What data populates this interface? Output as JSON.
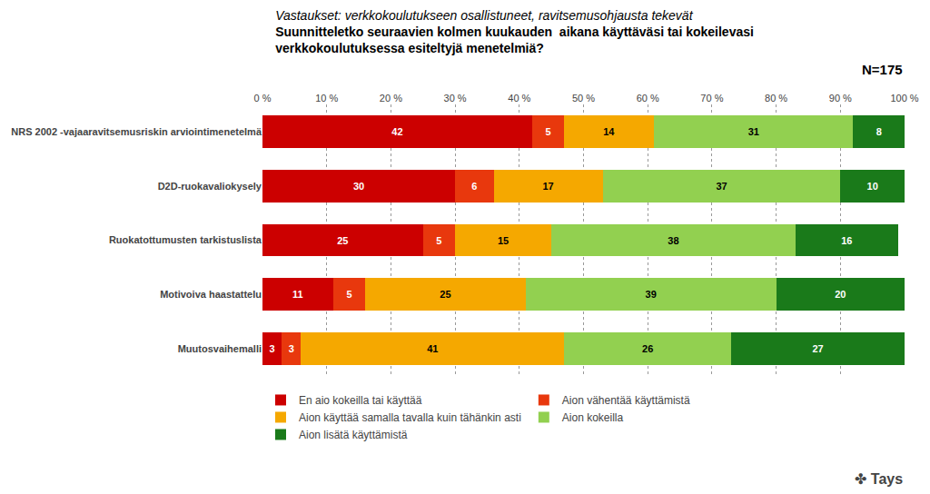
{
  "chart_data": {
    "type": "bar",
    "orientation": "horizontal",
    "stacked": true,
    "subtitle": "Vastaukset: verkkokoulutukseen osallistuneet, ravitsemusohjausta tekevät",
    "title": "Suunnitteletko seuraavien kolmen kuukauden  aikana käyttäväsi tai kokeilevasi\nverkkokoulutuksessa esiteltyjä menetelmiä?",
    "annotations": [
      "N=175",
      "✤ Tays"
    ],
    "categories": [
      "NRS 2002 -vajaaravitsemusriskin arviointimenetelmä",
      "D2D-ruokavaliokysely",
      "Ruokatottumusten tarkistuslista",
      "Motivoiva haastattelu",
      "Muutosvaihemalli"
    ],
    "series": [
      {
        "name": "En aio kokeilla tai käyttää",
        "color": "#cc0000",
        "values": [
          42,
          30,
          25,
          11,
          3
        ]
      },
      {
        "name": "Aion vähentää käyttämistä",
        "color": "#e8380d",
        "values": [
          5,
          6,
          5,
          5,
          3
        ]
      },
      {
        "name": "Aion käyttää samalla tavalla kuin tähänkin asti",
        "color": "#f5a800",
        "values": [
          14,
          17,
          15,
          25,
          41
        ]
      },
      {
        "name": "Aion kokeilla",
        "color": "#92d050",
        "values": [
          31,
          37,
          38,
          39,
          26
        ]
      },
      {
        "name": "Aion lisätä käyttämistä",
        "color": "#1a7a1a",
        "values": [
          8,
          10,
          16,
          20,
          27
        ]
      }
    ],
    "xlim": [
      0,
      100
    ],
    "xticks": [
      {
        "value": 0,
        "label": "0 %"
      },
      {
        "value": 10,
        "label": "10 %"
      },
      {
        "value": 20,
        "label": "20 %"
      },
      {
        "value": 30,
        "label": "30 %"
      },
      {
        "value": 40,
        "label": "40 %"
      },
      {
        "value": 50,
        "label": "50 %"
      },
      {
        "value": 60,
        "label": "60 %"
      },
      {
        "value": 70,
        "label": "70 %"
      },
      {
        "value": 80,
        "label": "80 %"
      },
      {
        "value": 90,
        "label": "90 %"
      },
      {
        "value": 100,
        "label": "100 %"
      }
    ],
    "grid": true,
    "data_labels": true,
    "legend": "bottom"
  }
}
